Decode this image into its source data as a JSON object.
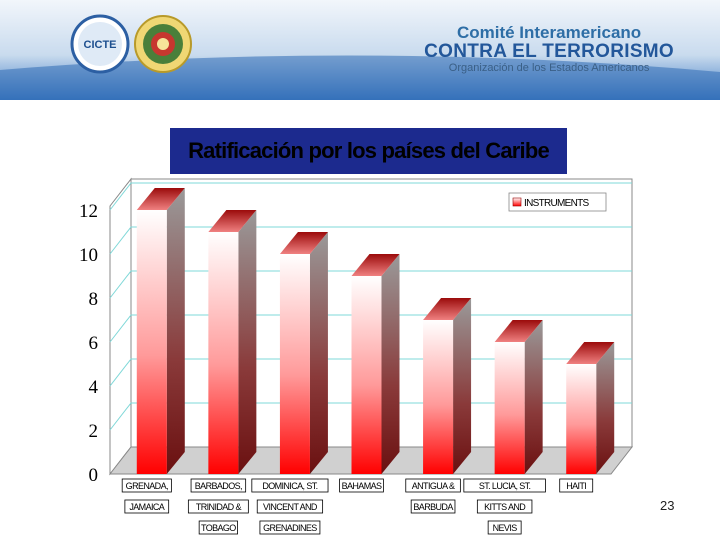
{
  "header": {
    "org_line1": "Comité Interamericano",
    "org_line2": "CONTRA EL TERRORISMO",
    "org_line3": "Organización de los Estados Americanos",
    "logo1_text": "CICTE"
  },
  "slide": {
    "title": "Ratificación por los países del Caribe",
    "page_number": "23"
  },
  "colors": {
    "banner_top": "#e6eef7",
    "banner_bottom": "#3b78c2",
    "title_box": "#1c2a8e",
    "bar_top": "#ffffff",
    "bar_bottom": "#ff0000",
    "gridline": "#7fd8d8"
  },
  "chart_data": {
    "type": "bar",
    "categories": [
      [
        "GRENADA,",
        "JAMAICA"
      ],
      [
        "BARBADOS,",
        "TRINIDAD &",
        "TOBAGO"
      ],
      [
        "DOMINICA, ST.",
        "VINCENT AND",
        "GRENADINES"
      ],
      [
        "BAHAMAS"
      ],
      [
        "ANTIGUA &",
        "BARBUDA"
      ],
      [
        "ST. LUCIA, ST.",
        "KITTS AND",
        "NEVIS"
      ],
      [
        "HAITI"
      ]
    ],
    "series": [
      {
        "name": "INSTRUMENTS",
        "values": [
          12,
          11,
          10,
          9,
          7,
          6,
          5
        ]
      }
    ],
    "yticks": [
      0,
      2,
      4,
      6,
      8,
      10,
      12
    ],
    "ylim": [
      0,
      12
    ],
    "grid": true,
    "legend": "top-right"
  }
}
